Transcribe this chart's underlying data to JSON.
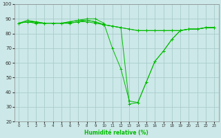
{
  "xlabel": "Humidité relative (%)",
  "background_color": "#cce8e8",
  "grid_color": "#aacccc",
  "line_color": "#00bb00",
  "xlim": [
    -0.5,
    23.5
  ],
  "ylim": [
    20,
    100
  ],
  "yticks": [
    20,
    30,
    40,
    50,
    60,
    70,
    80,
    90,
    100
  ],
  "xticks": [
    0,
    1,
    2,
    3,
    4,
    5,
    6,
    7,
    8,
    9,
    10,
    11,
    12,
    13,
    14,
    15,
    16,
    17,
    18,
    19,
    20,
    21,
    22,
    23
  ],
  "series": [
    [
      87,
      89,
      88,
      87,
      87,
      87,
      88,
      89,
      90,
      90,
      87,
      70,
      56,
      34,
      33,
      47,
      61,
      68,
      76,
      82,
      83,
      83,
      84,
      84
    ],
    [
      87,
      88,
      88,
      87,
      87,
      87,
      88,
      89,
      89,
      88,
      86,
      85,
      84,
      83,
      82,
      82,
      82,
      82,
      82,
      82,
      83,
      83,
      84,
      84
    ],
    [
      87,
      88,
      87,
      87,
      87,
      87,
      87,
      88,
      89,
      88,
      86,
      85,
      84,
      32,
      33,
      47,
      61,
      68,
      76,
      82,
      83,
      83,
      84,
      84
    ],
    [
      87,
      88,
      87,
      87,
      87,
      87,
      87,
      88,
      88,
      87,
      86,
      85,
      84,
      83,
      82,
      82,
      82,
      82,
      82,
      82,
      83,
      83,
      84,
      84
    ]
  ]
}
